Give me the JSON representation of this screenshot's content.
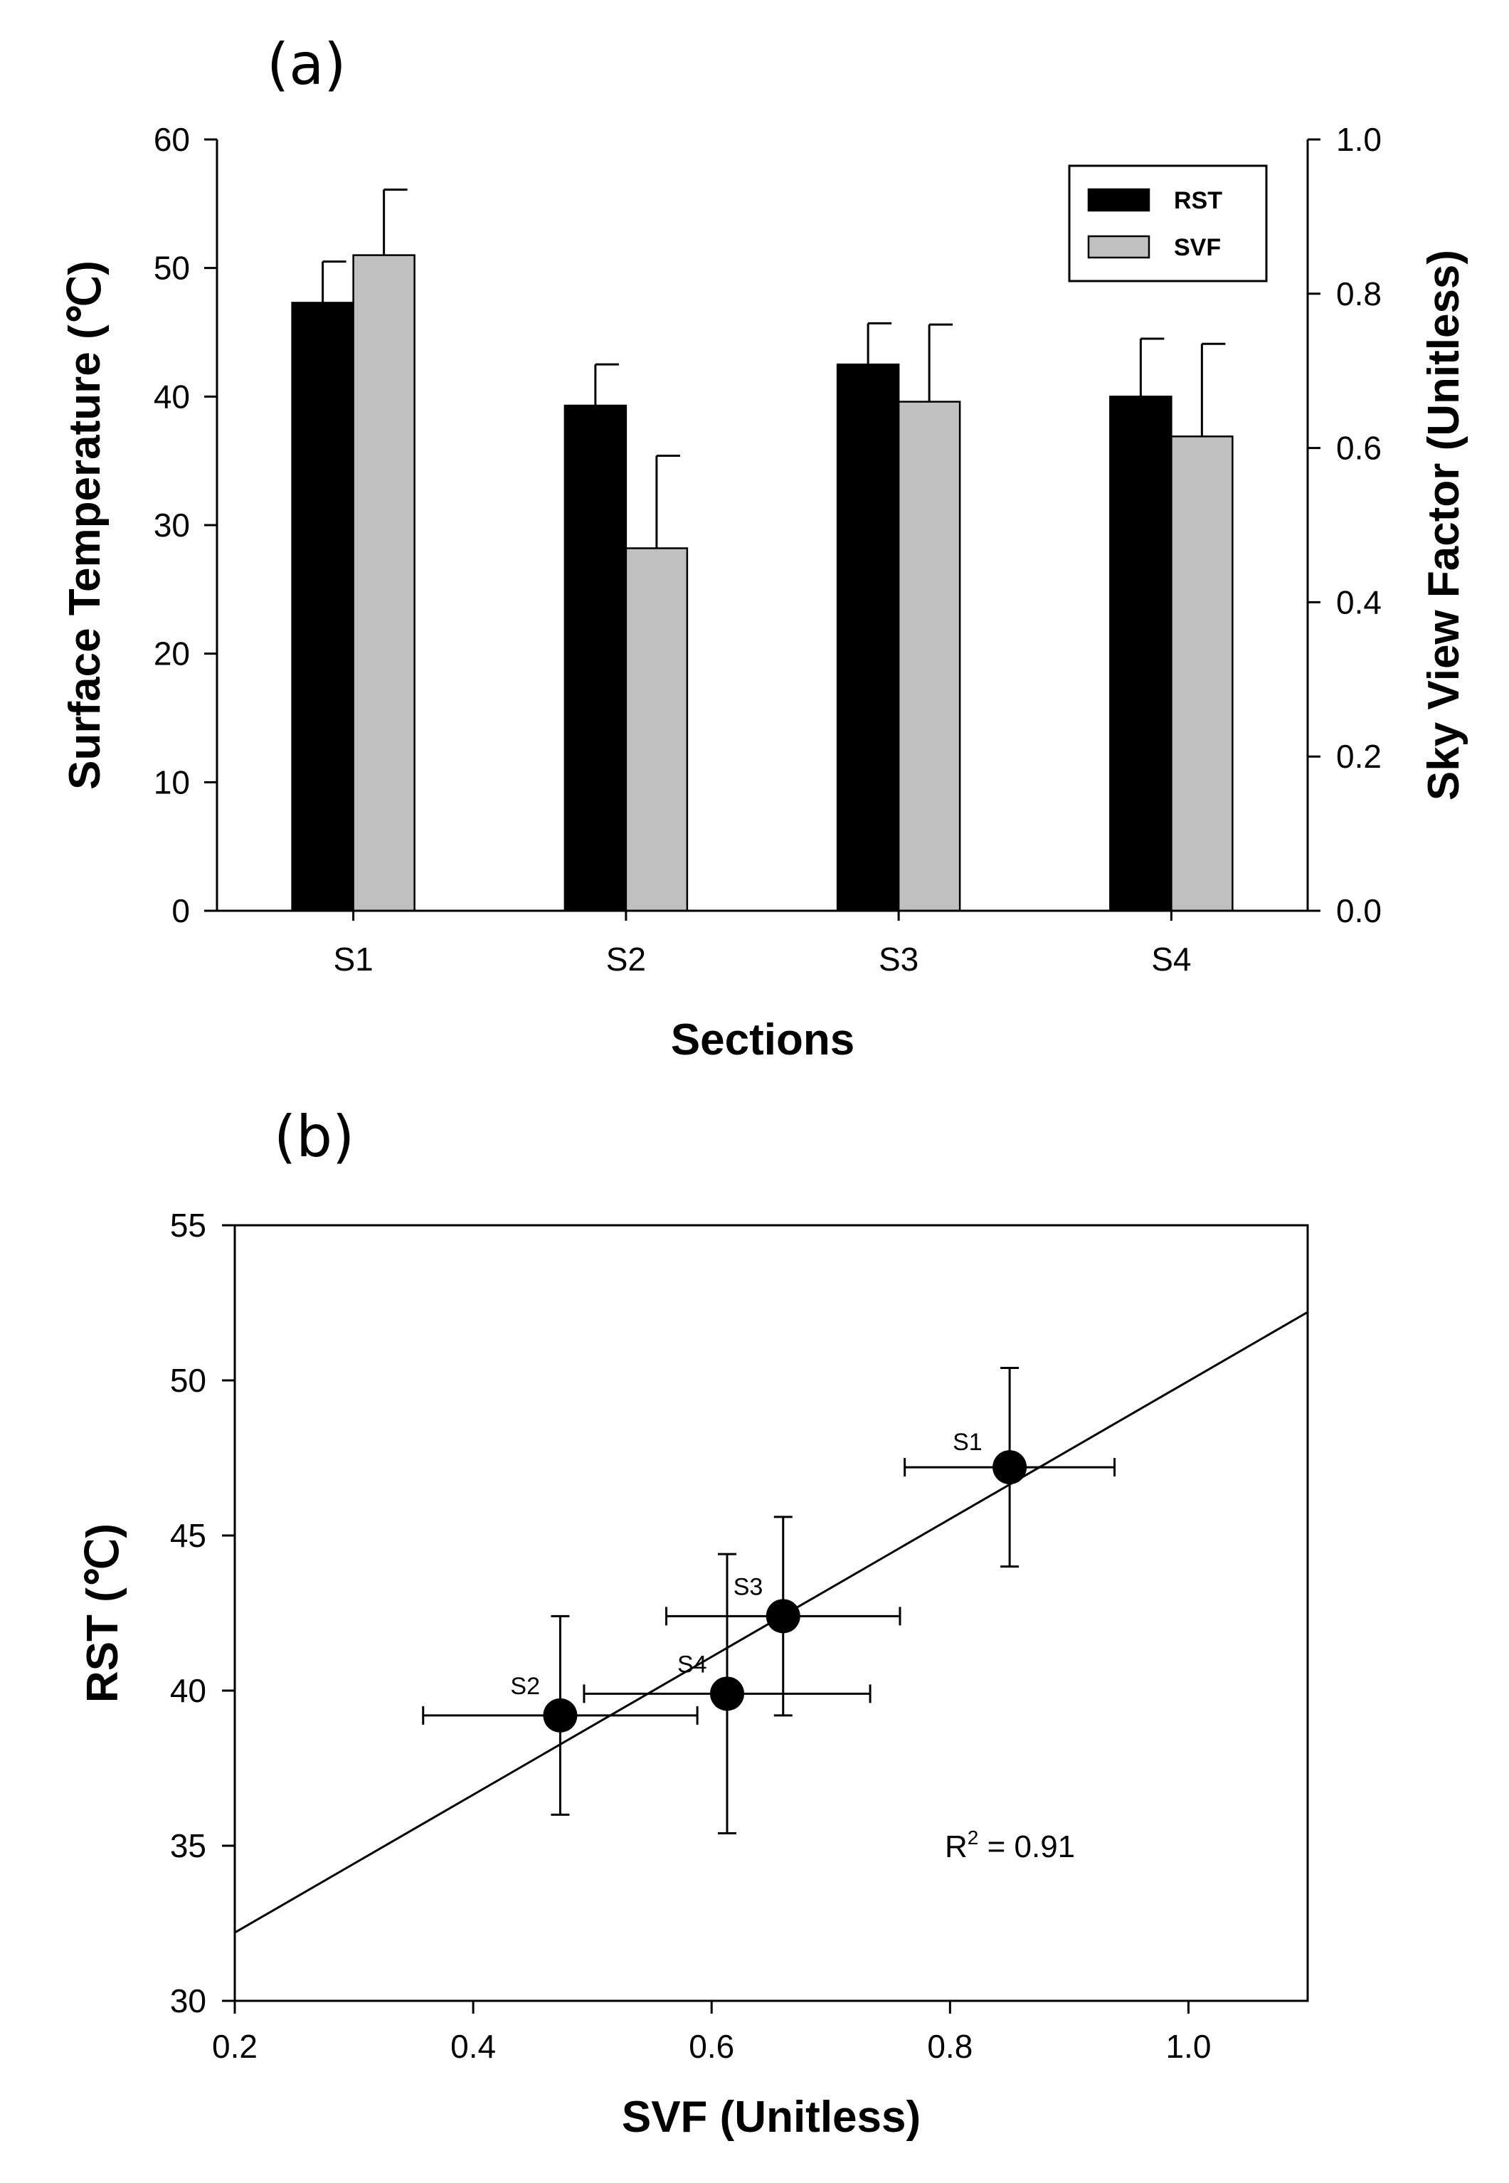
{
  "chart_data": [
    {
      "type": "bar",
      "panel_label": "(a)",
      "categories": [
        "S1",
        "S2",
        "S3",
        "S4"
      ],
      "xlabel": "Sections",
      "ylabel": "Surface Temperature (℃)",
      "ylabel_right": "Sky View Factor (Unitless)",
      "ylim": [
        0,
        60
      ],
      "ylim_right": [
        0,
        1.0
      ],
      "yticks": [
        "0",
        "10",
        "20",
        "30",
        "40",
        "50",
        "60"
      ],
      "yticks_right": [
        "0.0",
        "0.2",
        "0.4",
        "0.6",
        "0.8",
        "1.0"
      ],
      "legend_position": "top-right",
      "series": [
        {
          "name": "RST",
          "axis": "left",
          "color": "#000000",
          "values": [
            47.3,
            39.3,
            42.5,
            40.0
          ],
          "errors": [
            3.2,
            3.2,
            3.2,
            4.5
          ]
        },
        {
          "name": "SVF",
          "axis": "right",
          "color": "#c0c0c0",
          "values": [
            0.85,
            0.47,
            0.66,
            0.615
          ],
          "errors": [
            0.085,
            0.12,
            0.1,
            0.12
          ]
        }
      ]
    },
    {
      "type": "scatter",
      "panel_label": "(b)",
      "xlabel": "SVF (Unitless)",
      "ylabel": "RST (℃)",
      "xlim": [
        0.2,
        1.1
      ],
      "ylim": [
        30,
        55
      ],
      "xticks": [
        "0.2",
        "0.4",
        "0.6",
        "0.8",
        "1.0"
      ],
      "yticks": [
        "30",
        "35",
        "40",
        "45",
        "50",
        "55"
      ],
      "points": [
        {
          "label": "S1",
          "x": 0.85,
          "y": 47.2,
          "xerr": 0.088,
          "yerr": 3.2
        },
        {
          "label": "S2",
          "x": 0.473,
          "y": 39.2,
          "xerr": 0.115,
          "yerr": 3.2
        },
        {
          "label": "S3",
          "x": 0.66,
          "y": 42.4,
          "xerr": 0.098,
          "yerr": 3.2
        },
        {
          "label": "S4",
          "x": 0.613,
          "y": 39.9,
          "xerr": 0.12,
          "yerr": 4.5
        }
      ],
      "fit_line": {
        "x": [
          0.2,
          1.1
        ],
        "y": [
          32.2,
          52.2
        ]
      },
      "annotation": "= 0.91",
      "annotation_prefix": "R",
      "annotation_superscript": "2"
    }
  ]
}
